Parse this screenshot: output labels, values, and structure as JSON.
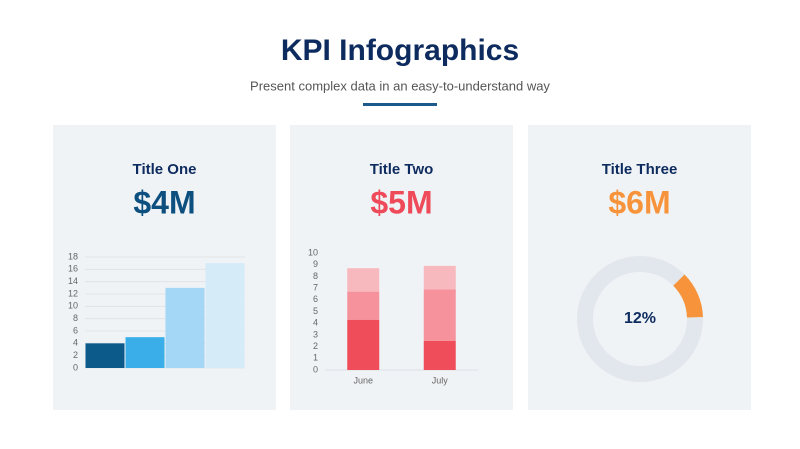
{
  "title": "KPI Infographics",
  "subtitle": "Present complex data in an easy-to-understand way",
  "chart_data": [
    {
      "type": "bar",
      "title": "Title One",
      "headline": "$4M",
      "headline_color": "#0d4f7f",
      "categories": [
        null,
        null,
        null,
        null
      ],
      "values": [
        4,
        5,
        13,
        17
      ],
      "colors": [
        "#0b5a8a",
        "#3aaee8",
        "#a4d6f5",
        "#d6ebf8"
      ],
      "ylim": [
        0,
        18
      ],
      "yticks": [
        0,
        2,
        4,
        6,
        8,
        10,
        12,
        14,
        16,
        18
      ],
      "grid": true
    },
    {
      "type": "stacked_bar",
      "title": "Title Two",
      "headline": "$5M",
      "headline_color": "#ee4a5a",
      "categories": [
        "June",
        "July"
      ],
      "series": [
        {
          "color": "#ef4d5a",
          "values": [
            4.3,
            2.5
          ]
        },
        {
          "color": "#f5929b",
          "values": [
            2.4,
            4.4
          ]
        },
        {
          "color": "#f7b9be",
          "values": [
            2.0,
            2.0
          ]
        }
      ],
      "ylim": [
        0,
        10
      ],
      "yticks": [
        0,
        1,
        2,
        3,
        4,
        5,
        6,
        7,
        8,
        9,
        10
      ],
      "grid": false
    },
    {
      "type": "donut",
      "title": "Title Three",
      "headline": "$6M",
      "headline_color": "#f7943b",
      "values": [
        12
      ],
      "value_labels": [
        "12%"
      ],
      "color": "#f7943b",
      "track_color": "#e2e7ed"
    }
  ]
}
